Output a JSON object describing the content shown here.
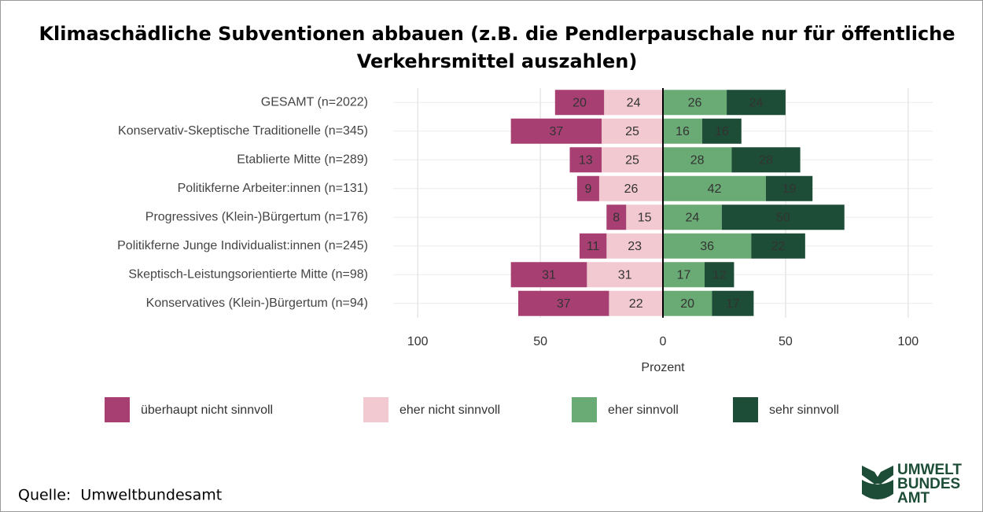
{
  "chart_data": {
    "type": "diverging_bar",
    "title": [
      "Klimaschädliche Subventionen abbauen (z.B. die Pendlerpauschale nur für öffentliche",
      "Verkehrsmittel auszahlen)"
    ],
    "categories": [
      "GESAMT (n=2022)",
      "Konservativ-Skeptische Traditionelle (n=345)",
      "Etablierte Mitte (n=289)",
      "Politikferne Arbeiter:innen (n=131)",
      "Progressives (Klein-)Bürgertum (n=176)",
      "Politikferne Junge Individualist:innen (n=245)",
      "Skeptisch-Leistungsorientierte Mitte (n=98)",
      "Konservatives (Klein-)Bürgertum (n=94)"
    ],
    "series": [
      {
        "name": "überhaupt nicht sinnvoll",
        "color": "#a83f72",
        "label_color": "#ffffff",
        "values": [
          20,
          37,
          13,
          9,
          8,
          11,
          31,
          37
        ]
      },
      {
        "name": "eher nicht sinnvoll",
        "color": "#f2c9d0",
        "label_color": "#000000",
        "values": [
          24,
          25,
          25,
          26,
          15,
          23,
          31,
          22
        ]
      },
      {
        "name": "eher sinnvoll",
        "color": "#6aaa74",
        "label_color": "#000000",
        "values": [
          26,
          16,
          28,
          42,
          24,
          36,
          17,
          20
        ]
      },
      {
        "name": "sehr sinnvoll",
        "color": "#1d4d37",
        "label_color": "#ffffff",
        "values": [
          24,
          16,
          28,
          19,
          50,
          22,
          12,
          17
        ]
      }
    ],
    "xlabel": "Prozent",
    "xlim": [
      -110,
      110
    ],
    "xticks": [
      {
        "value": -100,
        "label": "100"
      },
      {
        "value": -50,
        "label": "50"
      },
      0,
      50,
      100
    ],
    "grid": true,
    "legend": "bottom",
    "source": "Quelle:  Umweltbundesamt",
    "logo": [
      "UMWELT",
      "BUNDES",
      "AMT"
    ]
  }
}
